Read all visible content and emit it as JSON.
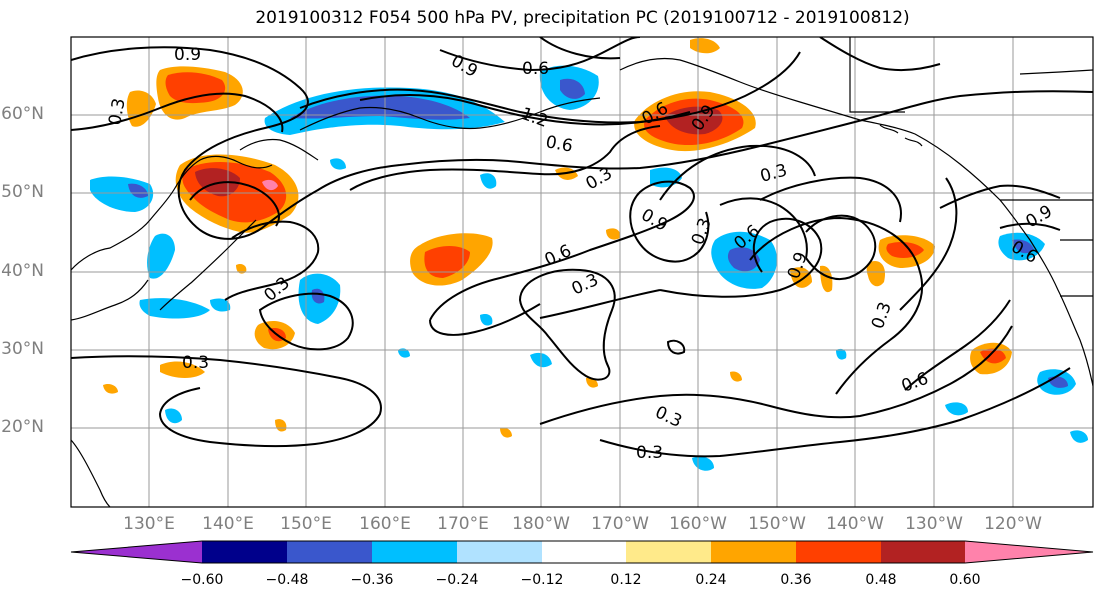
{
  "title": "2019100312 F054 500 hPa PV, precipitation PC (2019100712 - 2019100812)",
  "map": {
    "lat_labels": [
      "60°N",
      "50°N",
      "40°N",
      "30°N",
      "20°N"
    ],
    "lon_labels": [
      "130°E",
      "140°E",
      "150°E",
      "160°E",
      "170°E",
      "180°W",
      "170°W",
      "160°W",
      "150°W",
      "140°W",
      "130°W",
      "120°W"
    ],
    "contour_labels": [
      "0.9",
      "0.9",
      "0.6",
      "0.3",
      "1.2",
      "0.6",
      "0.3",
      "0.3",
      "0.9",
      "0.3",
      "0.6",
      "0.9",
      "0.3",
      "0.6",
      "0.3",
      "0.3",
      "0.3",
      "0.6",
      "0.3",
      "0.3",
      "0.6",
      "0.9",
      "0.9",
      "0.6"
    ]
  },
  "colorbar": {
    "colors": [
      "#9b30d0",
      "#00008b",
      "#3a57cc",
      "#00bfff",
      "#b0e2ff",
      "#ffffff",
      "#ffea8a",
      "#ffa500",
      "#ff4000",
      "#b22222",
      "#ff82ab"
    ],
    "tick_labels": [
      "−0.60",
      "−0.48",
      "−0.36",
      "−0.24",
      "−0.12",
      "0.12",
      "0.24",
      "0.36",
      "0.48",
      "0.60"
    ]
  }
}
